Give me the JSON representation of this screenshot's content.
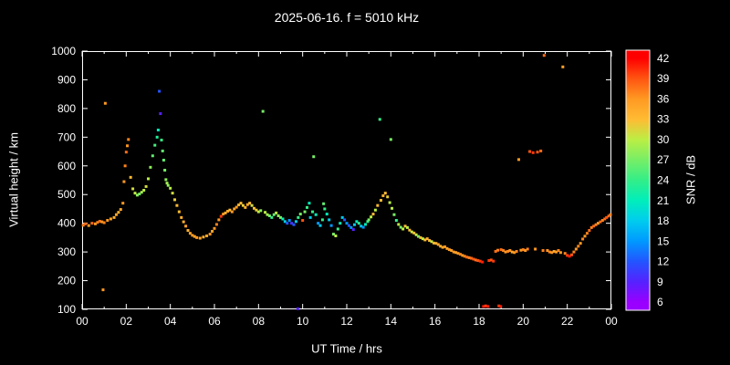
{
  "title": "2025-06-16. f = 5010 kHz",
  "chart_data": {
    "type": "scatter",
    "title": "2025-06-16. f = 5010 kHz",
    "xlabel": "UT Time / hrs",
    "ylabel": "Virtual height / km",
    "colorbar_label": "SNR / dB",
    "xlim": [
      0,
      24
    ],
    "ylim": [
      100,
      1000
    ],
    "grid": false,
    "background": "#000000",
    "axis_color": "#ffffff",
    "x_ticks": [
      [
        0,
        "00"
      ],
      [
        2,
        "02"
      ],
      [
        4,
        "04"
      ],
      [
        6,
        "06"
      ],
      [
        8,
        "08"
      ],
      [
        10,
        "10"
      ],
      [
        12,
        "12"
      ],
      [
        14,
        "14"
      ],
      [
        16,
        "16"
      ],
      [
        18,
        "18"
      ],
      [
        20,
        "20"
      ],
      [
        22,
        "22"
      ],
      [
        24,
        "00"
      ]
    ],
    "x_minor_ticks": [
      1,
      3,
      5,
      7,
      9,
      11,
      13,
      15,
      17,
      19,
      21,
      23
    ],
    "y_ticks": [
      100,
      200,
      300,
      400,
      500,
      600,
      700,
      800,
      900,
      1000
    ],
    "colorbar": {
      "min": 6,
      "max": 42,
      "ticks": [
        6,
        9,
        12,
        15,
        18,
        21,
        24,
        27,
        30,
        33,
        36,
        39,
        42
      ],
      "stops": [
        {
          "v": 6,
          "c": "#9900ff"
        },
        {
          "v": 9,
          "c": "#5522ff"
        },
        {
          "v": 12,
          "c": "#2255ff"
        },
        {
          "v": 15,
          "c": "#0099ff"
        },
        {
          "v": 18,
          "c": "#00ccee"
        },
        {
          "v": 21,
          "c": "#00eebb"
        },
        {
          "v": 24,
          "c": "#33ee88"
        },
        {
          "v": 27,
          "c": "#77ee66"
        },
        {
          "v": 30,
          "c": "#bbee44"
        },
        {
          "v": 33,
          "c": "#ffbb33"
        },
        {
          "v": 36,
          "c": "#ff9922"
        },
        {
          "v": 39,
          "c": "#ff5511"
        },
        {
          "v": 42,
          "c": "#ff0000"
        }
      ]
    },
    "points": [
      [
        0.05,
        393,
        37
      ],
      [
        0.15,
        398,
        38
      ],
      [
        0.3,
        392,
        36
      ],
      [
        0.45,
        400,
        38
      ],
      [
        0.6,
        398,
        36
      ],
      [
        0.7,
        403,
        37
      ],
      [
        0.8,
        407,
        38
      ],
      [
        0.9,
        405,
        36
      ],
      [
        0.95,
        168,
        36
      ],
      [
        1.05,
        818,
        36
      ],
      [
        1.0,
        402,
        37
      ],
      [
        1.15,
        410,
        36
      ],
      [
        1.3,
        415,
        35
      ],
      [
        1.45,
        420,
        34
      ],
      [
        1.55,
        430,
        35
      ],
      [
        1.65,
        438,
        34
      ],
      [
        1.75,
        448,
        35
      ],
      [
        1.85,
        470,
        36
      ],
      [
        1.9,
        545,
        36
      ],
      [
        1.95,
        600,
        37
      ],
      [
        2.0,
        648,
        38
      ],
      [
        2.05,
        670,
        36
      ],
      [
        2.1,
        692,
        37
      ],
      [
        2.2,
        560,
        33
      ],
      [
        2.3,
        520,
        31
      ],
      [
        2.4,
        505,
        30
      ],
      [
        2.5,
        498,
        28
      ],
      [
        2.6,
        502,
        27
      ],
      [
        2.7,
        508,
        29
      ],
      [
        2.8,
        515,
        30
      ],
      [
        2.9,
        528,
        31
      ],
      [
        3.0,
        555,
        30
      ],
      [
        3.1,
        595,
        28
      ],
      [
        3.2,
        635,
        26
      ],
      [
        3.3,
        672,
        25
      ],
      [
        3.4,
        700,
        23
      ],
      [
        3.45,
        725,
        21
      ],
      [
        3.5,
        860,
        12
      ],
      [
        3.55,
        782,
        9
      ],
      [
        3.6,
        690,
        24
      ],
      [
        3.65,
        652,
        26
      ],
      [
        3.7,
        620,
        26
      ],
      [
        3.75,
        585,
        27
      ],
      [
        3.8,
        552,
        28
      ],
      [
        3.85,
        540,
        29
      ],
      [
        3.9,
        532,
        28
      ],
      [
        4.0,
        522,
        30
      ],
      [
        4.1,
        505,
        31
      ],
      [
        4.2,
        482,
        32
      ],
      [
        4.3,
        462,
        33
      ],
      [
        4.4,
        440,
        33
      ],
      [
        4.5,
        420,
        34
      ],
      [
        4.6,
        405,
        34
      ],
      [
        4.7,
        390,
        35
      ],
      [
        4.8,
        375,
        34
      ],
      [
        4.9,
        365,
        35
      ],
      [
        5.0,
        358,
        36
      ],
      [
        5.1,
        354,
        35
      ],
      [
        5.2,
        350,
        36
      ],
      [
        5.35,
        348,
        35
      ],
      [
        5.5,
        352,
        34
      ],
      [
        5.65,
        356,
        35
      ],
      [
        5.8,
        362,
        36
      ],
      [
        5.9,
        372,
        35
      ],
      [
        6.0,
        382,
        36
      ],
      [
        6.1,
        396,
        37
      ],
      [
        6.2,
        412,
        36
      ],
      [
        6.3,
        424,
        40
      ],
      [
        6.4,
        432,
        36
      ],
      [
        6.5,
        436,
        34
      ],
      [
        6.6,
        442,
        35
      ],
      [
        6.7,
        446,
        33
      ],
      [
        6.8,
        440,
        36
      ],
      [
        6.9,
        450,
        35
      ],
      [
        7.0,
        456,
        36
      ],
      [
        7.1,
        464,
        34
      ],
      [
        7.2,
        470,
        33
      ],
      [
        7.3,
        462,
        32
      ],
      [
        7.4,
        455,
        34
      ],
      [
        7.5,
        465,
        35
      ],
      [
        7.6,
        470,
        33
      ],
      [
        7.7,
        462,
        31
      ],
      [
        7.8,
        452,
        33
      ],
      [
        7.9,
        446,
        32
      ],
      [
        8.0,
        440,
        30
      ],
      [
        8.1,
        444,
        28
      ],
      [
        8.2,
        790,
        27
      ],
      [
        8.3,
        438,
        30
      ],
      [
        8.4,
        430,
        29
      ],
      [
        8.5,
        426,
        27
      ],
      [
        8.6,
        420,
        24
      ],
      [
        8.7,
        430,
        26
      ],
      [
        8.8,
        436,
        30
      ],
      [
        8.9,
        426,
        28
      ],
      [
        9.0,
        420,
        27
      ],
      [
        9.1,
        415,
        21
      ],
      [
        9.2,
        406,
        18
      ],
      [
        9.3,
        400,
        12
      ],
      [
        9.4,
        410,
        15
      ],
      [
        9.5,
        400,
        10
      ],
      [
        9.6,
        395,
        12
      ],
      [
        9.7,
        406,
        18
      ],
      [
        9.78,
        102,
        9
      ],
      [
        9.8,
        420,
        24
      ],
      [
        9.9,
        432,
        27
      ],
      [
        10.0,
        410,
        39
      ],
      [
        10.1,
        440,
        27
      ],
      [
        10.2,
        455,
        24
      ],
      [
        10.3,
        470,
        21
      ],
      [
        10.35,
        420,
        18
      ],
      [
        10.45,
        440,
        24
      ],
      [
        10.5,
        632,
        27
      ],
      [
        10.6,
        430,
        21
      ],
      [
        10.7,
        400,
        15
      ],
      [
        10.8,
        392,
        18
      ],
      [
        10.9,
        412,
        24
      ],
      [
        10.95,
        468,
        26
      ],
      [
        11.0,
        450,
        24
      ],
      [
        11.1,
        432,
        21
      ],
      [
        11.2,
        412,
        18
      ],
      [
        11.3,
        392,
        15
      ],
      [
        11.4,
        362,
        27
      ],
      [
        11.5,
        356,
        30
      ],
      [
        11.6,
        380,
        24
      ],
      [
        11.7,
        400,
        21
      ],
      [
        11.8,
        420,
        18
      ],
      [
        11.9,
        412,
        12
      ],
      [
        12.0,
        400,
        15
      ],
      [
        12.1,
        392,
        12
      ],
      [
        12.2,
        385,
        15
      ],
      [
        12.3,
        378,
        9
      ],
      [
        12.35,
        395,
        18
      ],
      [
        12.45,
        406,
        21
      ],
      [
        12.55,
        400,
        24
      ],
      [
        12.65,
        390,
        18
      ],
      [
        12.75,
        386,
        15
      ],
      [
        12.85,
        396,
        21
      ],
      [
        12.95,
        406,
        24
      ],
      [
        13.0,
        412,
        27
      ],
      [
        13.1,
        422,
        30
      ],
      [
        13.2,
        432,
        33
      ],
      [
        13.3,
        446,
        30
      ],
      [
        13.4,
        462,
        33
      ],
      [
        13.5,
        762,
        24
      ],
      [
        13.55,
        480,
        33
      ],
      [
        13.65,
        496,
        34
      ],
      [
        13.75,
        505,
        33
      ],
      [
        13.85,
        492,
        32
      ],
      [
        13.95,
        472,
        30
      ],
      [
        14.0,
        692,
        27
      ],
      [
        14.05,
        452,
        30
      ],
      [
        14.15,
        430,
        27
      ],
      [
        14.25,
        410,
        24
      ],
      [
        14.35,
        396,
        30
      ],
      [
        14.45,
        386,
        27
      ],
      [
        14.55,
        380,
        30
      ],
      [
        14.65,
        390,
        33
      ],
      [
        14.75,
        385,
        30
      ],
      [
        14.85,
        376,
        33
      ],
      [
        14.95,
        370,
        30
      ],
      [
        15.05,
        366,
        33
      ],
      [
        15.15,
        360,
        30
      ],
      [
        15.25,
        354,
        27
      ],
      [
        15.35,
        350,
        33
      ],
      [
        15.45,
        346,
        30
      ],
      [
        15.55,
        342,
        33
      ],
      [
        15.65,
        346,
        34
      ],
      [
        15.75,
        340,
        33
      ],
      [
        15.85,
        336,
        30
      ],
      [
        15.95,
        331,
        33
      ],
      [
        16.05,
        330,
        34
      ],
      [
        16.15,
        326,
        35
      ],
      [
        16.25,
        320,
        34
      ],
      [
        16.35,
        316,
        35
      ],
      [
        16.45,
        318,
        36
      ],
      [
        16.55,
        312,
        35
      ],
      [
        16.65,
        308,
        36
      ],
      [
        16.75,
        305,
        35
      ],
      [
        16.85,
        300,
        36
      ],
      [
        16.95,
        298,
        35
      ],
      [
        17.05,
        295,
        36
      ],
      [
        17.15,
        292,
        37
      ],
      [
        17.25,
        288,
        36
      ],
      [
        17.35,
        285,
        37
      ],
      [
        17.45,
        282,
        38
      ],
      [
        17.55,
        280,
        37
      ],
      [
        17.65,
        278,
        38
      ],
      [
        17.75,
        275,
        39
      ],
      [
        17.85,
        272,
        38
      ],
      [
        17.95,
        270,
        39
      ],
      [
        18.05,
        268,
        40
      ],
      [
        18.15,
        265,
        41
      ],
      [
        18.2,
        110,
        41
      ],
      [
        18.3,
        112,
        40
      ],
      [
        18.4,
        110,
        41
      ],
      [
        18.45,
        270,
        40
      ],
      [
        18.55,
        272,
        39
      ],
      [
        18.65,
        268,
        40
      ],
      [
        18.75,
        302,
        38
      ],
      [
        18.85,
        306,
        37
      ],
      [
        18.9,
        112,
        40
      ],
      [
        18.98,
        110,
        41
      ],
      [
        19.0,
        308,
        38
      ],
      [
        19.1,
        305,
        37
      ],
      [
        19.2,
        300,
        36
      ],
      [
        19.3,
        302,
        37
      ],
      [
        19.4,
        305,
        36
      ],
      [
        19.5,
        300,
        35
      ],
      [
        19.6,
        298,
        36
      ],
      [
        19.7,
        302,
        37
      ],
      [
        19.8,
        622,
        36
      ],
      [
        19.9,
        306,
        36
      ],
      [
        20.0,
        308,
        37
      ],
      [
        20.1,
        305,
        36
      ],
      [
        20.2,
        310,
        37
      ],
      [
        20.3,
        650,
        39
      ],
      [
        20.45,
        646,
        40
      ],
      [
        20.55,
        310,
        36
      ],
      [
        20.65,
        648,
        39
      ],
      [
        20.8,
        652,
        38
      ],
      [
        20.9,
        305,
        37
      ],
      [
        20.95,
        985,
        38
      ],
      [
        21.1,
        305,
        36
      ],
      [
        21.2,
        300,
        37
      ],
      [
        21.3,
        298,
        36
      ],
      [
        21.4,
        302,
        35
      ],
      [
        21.5,
        300,
        36
      ],
      [
        21.6,
        305,
        37
      ],
      [
        21.7,
        298,
        36
      ],
      [
        21.8,
        945,
        35
      ],
      [
        21.9,
        295,
        37
      ],
      [
        22.0,
        288,
        40
      ],
      [
        22.1,
        285,
        41
      ],
      [
        22.2,
        290,
        39
      ],
      [
        22.3,
        300,
        37
      ],
      [
        22.4,
        310,
        36
      ],
      [
        22.5,
        320,
        37
      ],
      [
        22.6,
        330,
        36
      ],
      [
        22.7,
        345,
        37
      ],
      [
        22.8,
        355,
        36
      ],
      [
        22.9,
        365,
        37
      ],
      [
        23.0,
        375,
        38
      ],
      [
        23.1,
        385,
        37
      ],
      [
        23.2,
        390,
        38
      ],
      [
        23.3,
        395,
        37
      ],
      [
        23.4,
        400,
        36
      ],
      [
        23.5,
        405,
        38
      ],
      [
        23.6,
        410,
        37
      ],
      [
        23.7,
        415,
        38
      ],
      [
        23.78,
        420,
        39
      ],
      [
        23.88,
        425,
        38
      ],
      [
        23.96,
        430,
        37
      ]
    ]
  }
}
